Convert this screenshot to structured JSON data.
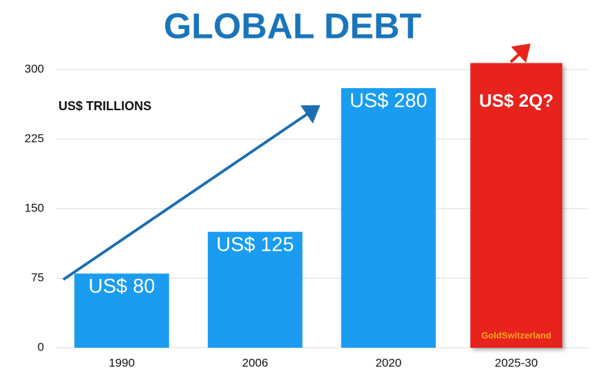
{
  "chart_data": {
    "type": "bar",
    "title": "GLOBAL DEBT",
    "y_label": "US$ TRILLIONS",
    "categories": [
      "1990",
      "2006",
      "2020",
      "2025-30"
    ],
    "values": [
      80,
      125,
      280,
      307
    ],
    "value_labels": [
      "US$ 80",
      "US$ 125",
      "US$ 280",
      null
    ],
    "colors": [
      "#1a9cf0",
      "#1a9cf0",
      "#1a9cf0",
      "#e8241a"
    ],
    "annotations": [
      "US$ 2Q?",
      "GoldSwitzerland"
    ],
    "ylim": [
      0,
      300
    ],
    "yticks": [
      0,
      75,
      150,
      225,
      300
    ],
    "grid": true
  }
}
